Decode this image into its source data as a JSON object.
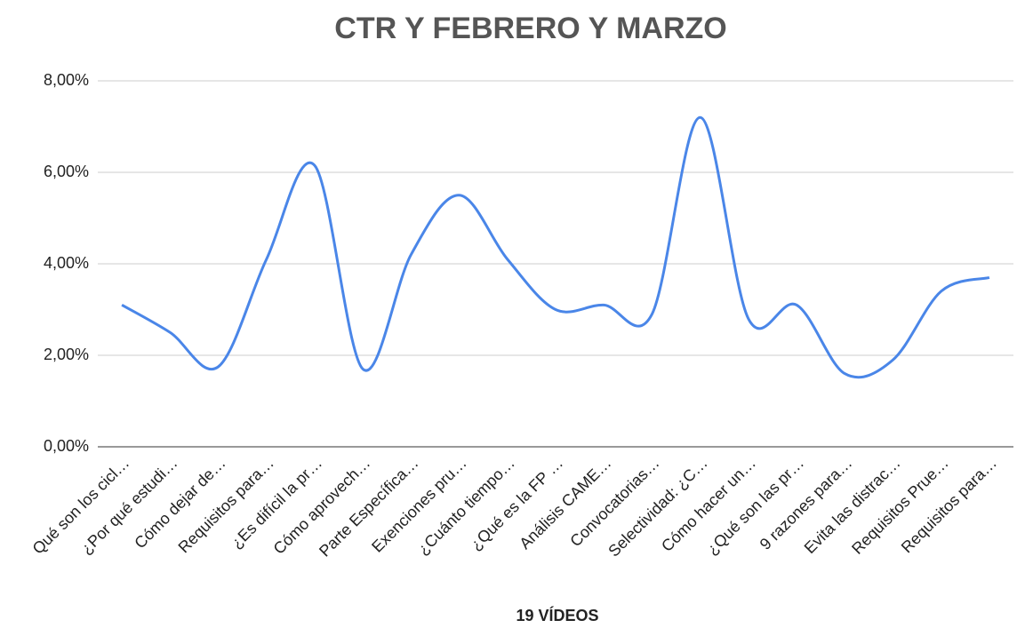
{
  "chart_data": {
    "type": "line",
    "title": "CTR Y FEBRERO Y MARZO",
    "x_label": "19 VÍDEOS",
    "categories": [
      "Qué son los cicl…",
      "¿Por qué estudi…",
      "Cómo dejar de…",
      "Requisitos para…",
      "¿Es difícil la pr…",
      "Cómo aprovech…",
      "Parte Específica…",
      "Exenciones pru…",
      "¿Cuánto tiempo…",
      "¿Qué es la FP …",
      "Análisis CAME…",
      "Convocatorias…",
      "Selectividad: ¿C…",
      "Cómo hacer un…",
      "¿Qué son las pr…",
      "9 razones para…",
      "Evita las distrac…",
      "Requisitos Prue…",
      "Requisitos para…"
    ],
    "values": [
      3.1,
      2.5,
      1.75,
      4.1,
      6.15,
      1.7,
      4.2,
      5.5,
      4.1,
      3.0,
      3.1,
      2.9,
      7.2,
      2.8,
      3.1,
      1.6,
      1.9,
      3.4,
      3.7
    ],
    "color": "#4a86e8",
    "ylim": [
      0,
      8
    ],
    "yticks": [
      {
        "value": 0,
        "label": "0,00%"
      },
      {
        "value": 2,
        "label": "2,00%"
      },
      {
        "value": 4,
        "label": "4,00%"
      },
      {
        "value": 6,
        "label": "6,00%"
      },
      {
        "value": 8,
        "label": "8,00%"
      }
    ],
    "grid": true
  }
}
